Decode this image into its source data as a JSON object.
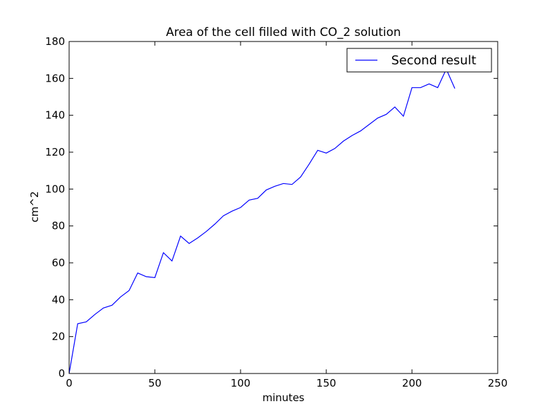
{
  "chart_data": {
    "type": "line",
    "title": "Area of the cell filled with CO_2 solution",
    "xlabel": "minutes",
    "ylabel": "cm^2",
    "xlim": [
      0,
      250
    ],
    "ylim": [
      0,
      180
    ],
    "xticks": [
      0,
      50,
      100,
      150,
      200,
      250
    ],
    "yticks": [
      0,
      20,
      40,
      60,
      80,
      100,
      120,
      140,
      160,
      180
    ],
    "grid": false,
    "legend_position": "top-right",
    "series": [
      {
        "name": "Second result",
        "color": "#0000ff",
        "x": [
          0,
          5,
          10,
          15,
          20,
          25,
          30,
          35,
          40,
          45,
          50,
          55,
          60,
          65,
          70,
          75,
          80,
          85,
          90,
          95,
          100,
          105,
          110,
          115,
          120,
          125,
          130,
          135,
          140,
          145,
          150,
          155,
          160,
          165,
          170,
          175,
          180,
          185,
          190,
          195,
          200,
          205,
          210,
          215,
          220,
          225
        ],
        "y": [
          0,
          27,
          28,
          32,
          35.5,
          37,
          41.5,
          45,
          54.5,
          52.5,
          52,
          65.5,
          61,
          74.5,
          70.5,
          73.5,
          77,
          81,
          85.5,
          88,
          90,
          94,
          95,
          99.5,
          101.5,
          103,
          102.5,
          106.5,
          113.5,
          121,
          119.5,
          122,
          126,
          129,
          131.5,
          135,
          138.5,
          140.5,
          144.5,
          139.5,
          155,
          155,
          157,
          155,
          165,
          154.5
        ]
      }
    ]
  }
}
